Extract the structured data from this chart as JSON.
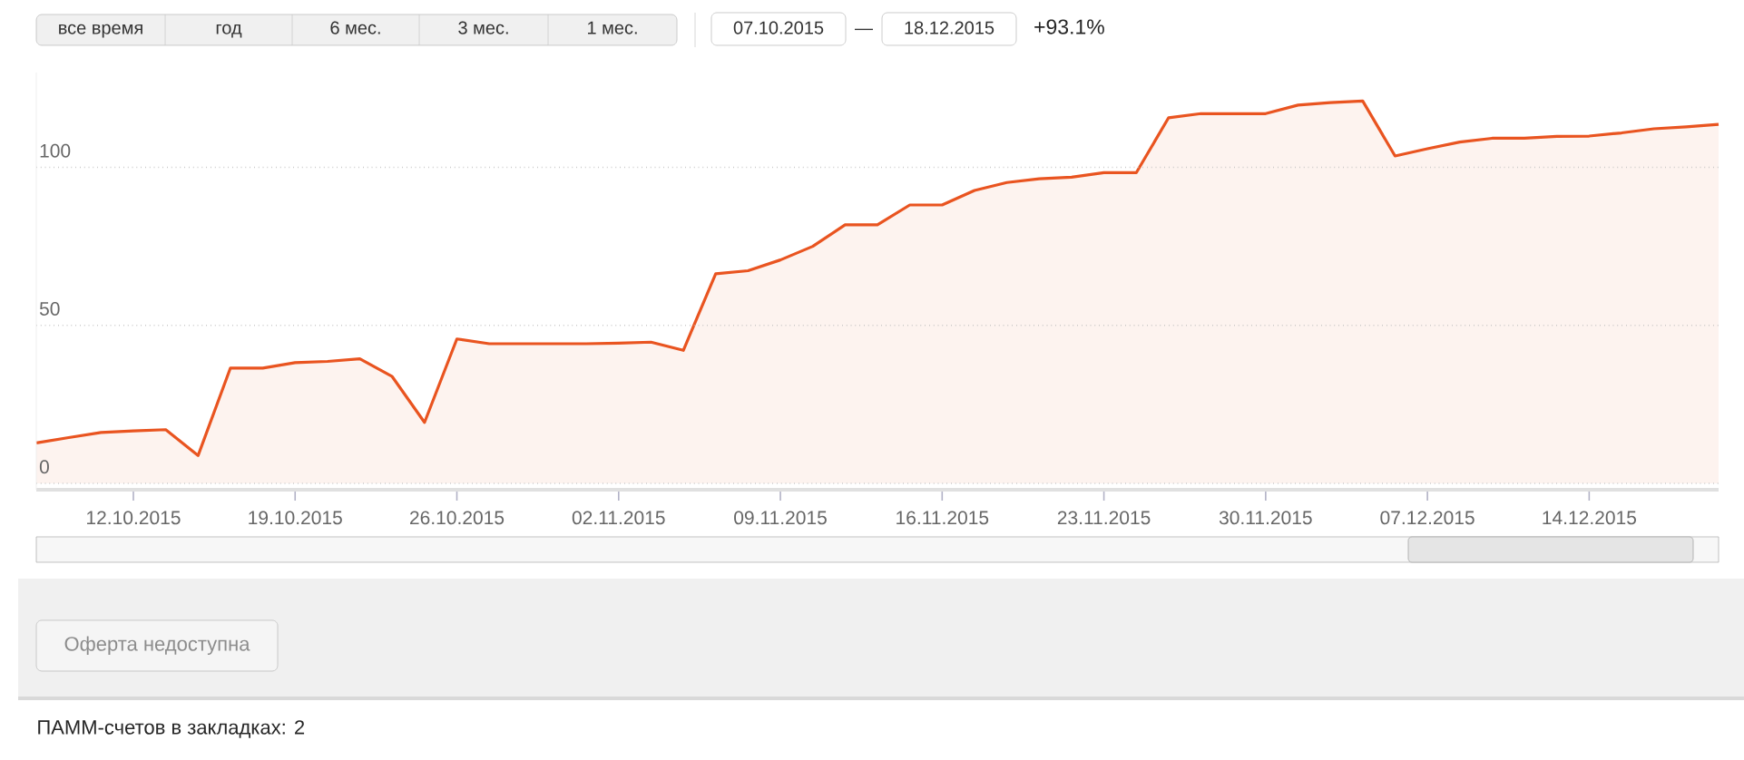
{
  "chart_data": {
    "type": "area",
    "categories": [
      null,
      null,
      null,
      "12.10.2015",
      null,
      null,
      null,
      null,
      "19.10.2015",
      null,
      null,
      null,
      null,
      "26.10.2015",
      null,
      null,
      null,
      null,
      "02.11.2015",
      null,
      null,
      null,
      null,
      "09.11.2015",
      null,
      null,
      null,
      null,
      "16.11.2015",
      null,
      null,
      null,
      null,
      "23.11.2015",
      null,
      null,
      null,
      null,
      "30.11.2015",
      null,
      null,
      null,
      null,
      "07.12.2015",
      null,
      null,
      null,
      null,
      "14.12.2015",
      null,
      null,
      null,
      null
    ],
    "values": [
      12.8,
      14.5,
      16.1,
      16.6,
      17.0,
      8.8,
      36.5,
      36.5,
      38.2,
      38.6,
      39.4,
      33.8,
      19.3,
      45.7,
      44.2,
      44.2,
      44.2,
      44.2,
      44.4,
      44.7,
      42.1,
      66.3,
      67.3,
      70.7,
      75.0,
      81.8,
      81.8,
      88.1,
      88.1,
      92.7,
      95.2,
      96.4,
      96.9,
      98.3,
      98.3,
      115.7,
      117.0,
      117.0,
      117.0,
      119.7,
      120.5,
      121.0,
      103.6,
      105.9,
      108.0,
      109.2,
      109.2,
      109.8,
      109.9,
      110.9,
      112.2,
      112.8,
      113.6
    ],
    "color": "#e95420",
    "ylim": [
      -2,
      130
    ],
    "yticks": [
      0,
      50,
      100
    ],
    "grid": "y",
    "annotations": [
      "все время",
      "год",
      "6 мес.",
      "3 мес.",
      "1 мес.",
      "07.10.2015",
      "—",
      "18.12.2015",
      "+93.1%",
      "Оферта недоступна",
      "ПАММ-счетов в закладках: 2"
    ]
  }
}
